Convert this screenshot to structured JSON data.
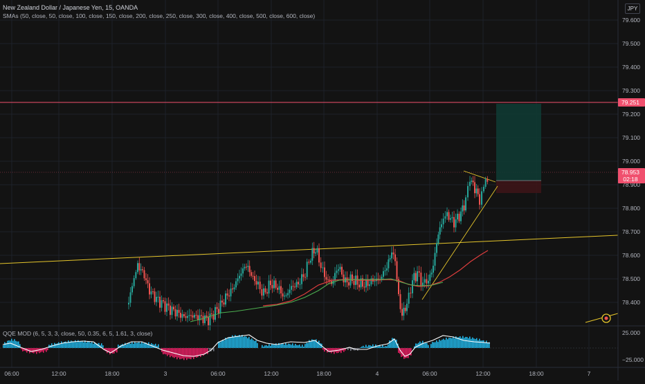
{
  "symbol": {
    "title": "New Zealand Dollar / Japanese Yen, 15, OANDA",
    "indicator": "SMAs (50, close, 50, close, 100, close, 150, close, 200, close, 250, close, 300, close, 400, close, 500, close, 600, close)",
    "currency": "JPY"
  },
  "oscillator": {
    "title": "QQE MOD (6, 5, 3, 3, close, 50, 0.35, 6, 5, 1.61, 3, close)",
    "ticks": [
      "25.000",
      "−25.000"
    ]
  },
  "price_axis": {
    "ticks": [
      "79.600",
      "79.500",
      "79.400",
      "79.300",
      "79.200",
      "79.100",
      "79.000",
      "78.900",
      "78.800",
      "78.700",
      "78.600",
      "78.500",
      "78.400"
    ],
    "target_label": "79.251",
    "current_price": "78.953",
    "countdown": "02:18"
  },
  "time_axis": {
    "labels": [
      "06:00",
      "12:00",
      "18:00",
      "3",
      "06:00",
      "12:00",
      "18:00",
      "4",
      "06:00",
      "12:00",
      "18:00",
      "7"
    ]
  },
  "colors": {
    "background": "#131313",
    "up_candle": "#26a69a",
    "down_candle": "#ef5350",
    "sma_short": "#e03e3e",
    "sma_long": "#4caf50",
    "trendline": "#e6c62b",
    "target_line": "#f0506e",
    "histogram_up": "#21b5e6",
    "histogram_down": "#e91e63"
  },
  "icons": {
    "replay": "replay-target-icon"
  }
}
